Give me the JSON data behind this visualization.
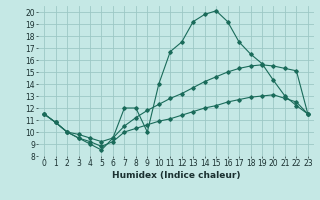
{
  "xlabel": "Humidex (Indice chaleur)",
  "bg_color": "#c5e8e5",
  "grid_color": "#9dc8c5",
  "line_color": "#1a6b5a",
  "xlim": [
    -0.5,
    23.5
  ],
  "ylim": [
    8,
    20.5
  ],
  "xticks": [
    0,
    1,
    2,
    3,
    4,
    5,
    6,
    7,
    8,
    9,
    10,
    11,
    12,
    13,
    14,
    15,
    16,
    17,
    18,
    19,
    20,
    21,
    22,
    23
  ],
  "yticks": [
    8,
    9,
    10,
    11,
    12,
    13,
    14,
    15,
    16,
    17,
    18,
    19,
    20
  ],
  "line1_x": [
    0,
    1,
    2,
    3,
    4,
    5,
    6,
    7,
    8,
    9,
    10,
    11,
    12,
    13,
    14,
    15,
    16,
    17,
    18,
    19,
    20,
    21,
    22,
    23
  ],
  "line1_y": [
    11.5,
    10.8,
    10.0,
    9.5,
    9.0,
    8.5,
    9.5,
    12.0,
    12.0,
    10.0,
    14.0,
    16.7,
    17.5,
    19.2,
    19.8,
    20.1,
    19.2,
    17.5,
    16.5,
    15.7,
    14.3,
    13.0,
    12.2,
    11.5
  ],
  "line2_x": [
    0,
    1,
    2,
    3,
    4,
    5,
    6,
    7,
    8,
    9,
    10,
    11,
    12,
    13,
    14,
    15,
    16,
    17,
    18,
    19,
    20,
    21,
    22,
    23
  ],
  "line2_y": [
    11.5,
    10.8,
    10.0,
    9.8,
    9.5,
    9.2,
    9.5,
    10.5,
    11.2,
    11.8,
    12.3,
    12.8,
    13.2,
    13.7,
    14.2,
    14.6,
    15.0,
    15.3,
    15.5,
    15.6,
    15.5,
    15.3,
    15.1,
    11.5
  ],
  "line3_x": [
    0,
    1,
    2,
    3,
    4,
    5,
    6,
    7,
    8,
    9,
    10,
    11,
    12,
    13,
    14,
    15,
    16,
    17,
    18,
    19,
    20,
    21,
    22,
    23
  ],
  "line3_y": [
    11.5,
    10.8,
    10.0,
    9.5,
    9.2,
    8.8,
    9.2,
    10.0,
    10.3,
    10.6,
    10.9,
    11.1,
    11.4,
    11.7,
    12.0,
    12.2,
    12.5,
    12.7,
    12.9,
    13.0,
    13.1,
    12.8,
    12.5,
    11.5
  ],
  "xlabel_fontsize": 6.5,
  "tick_fontsize": 5.5
}
